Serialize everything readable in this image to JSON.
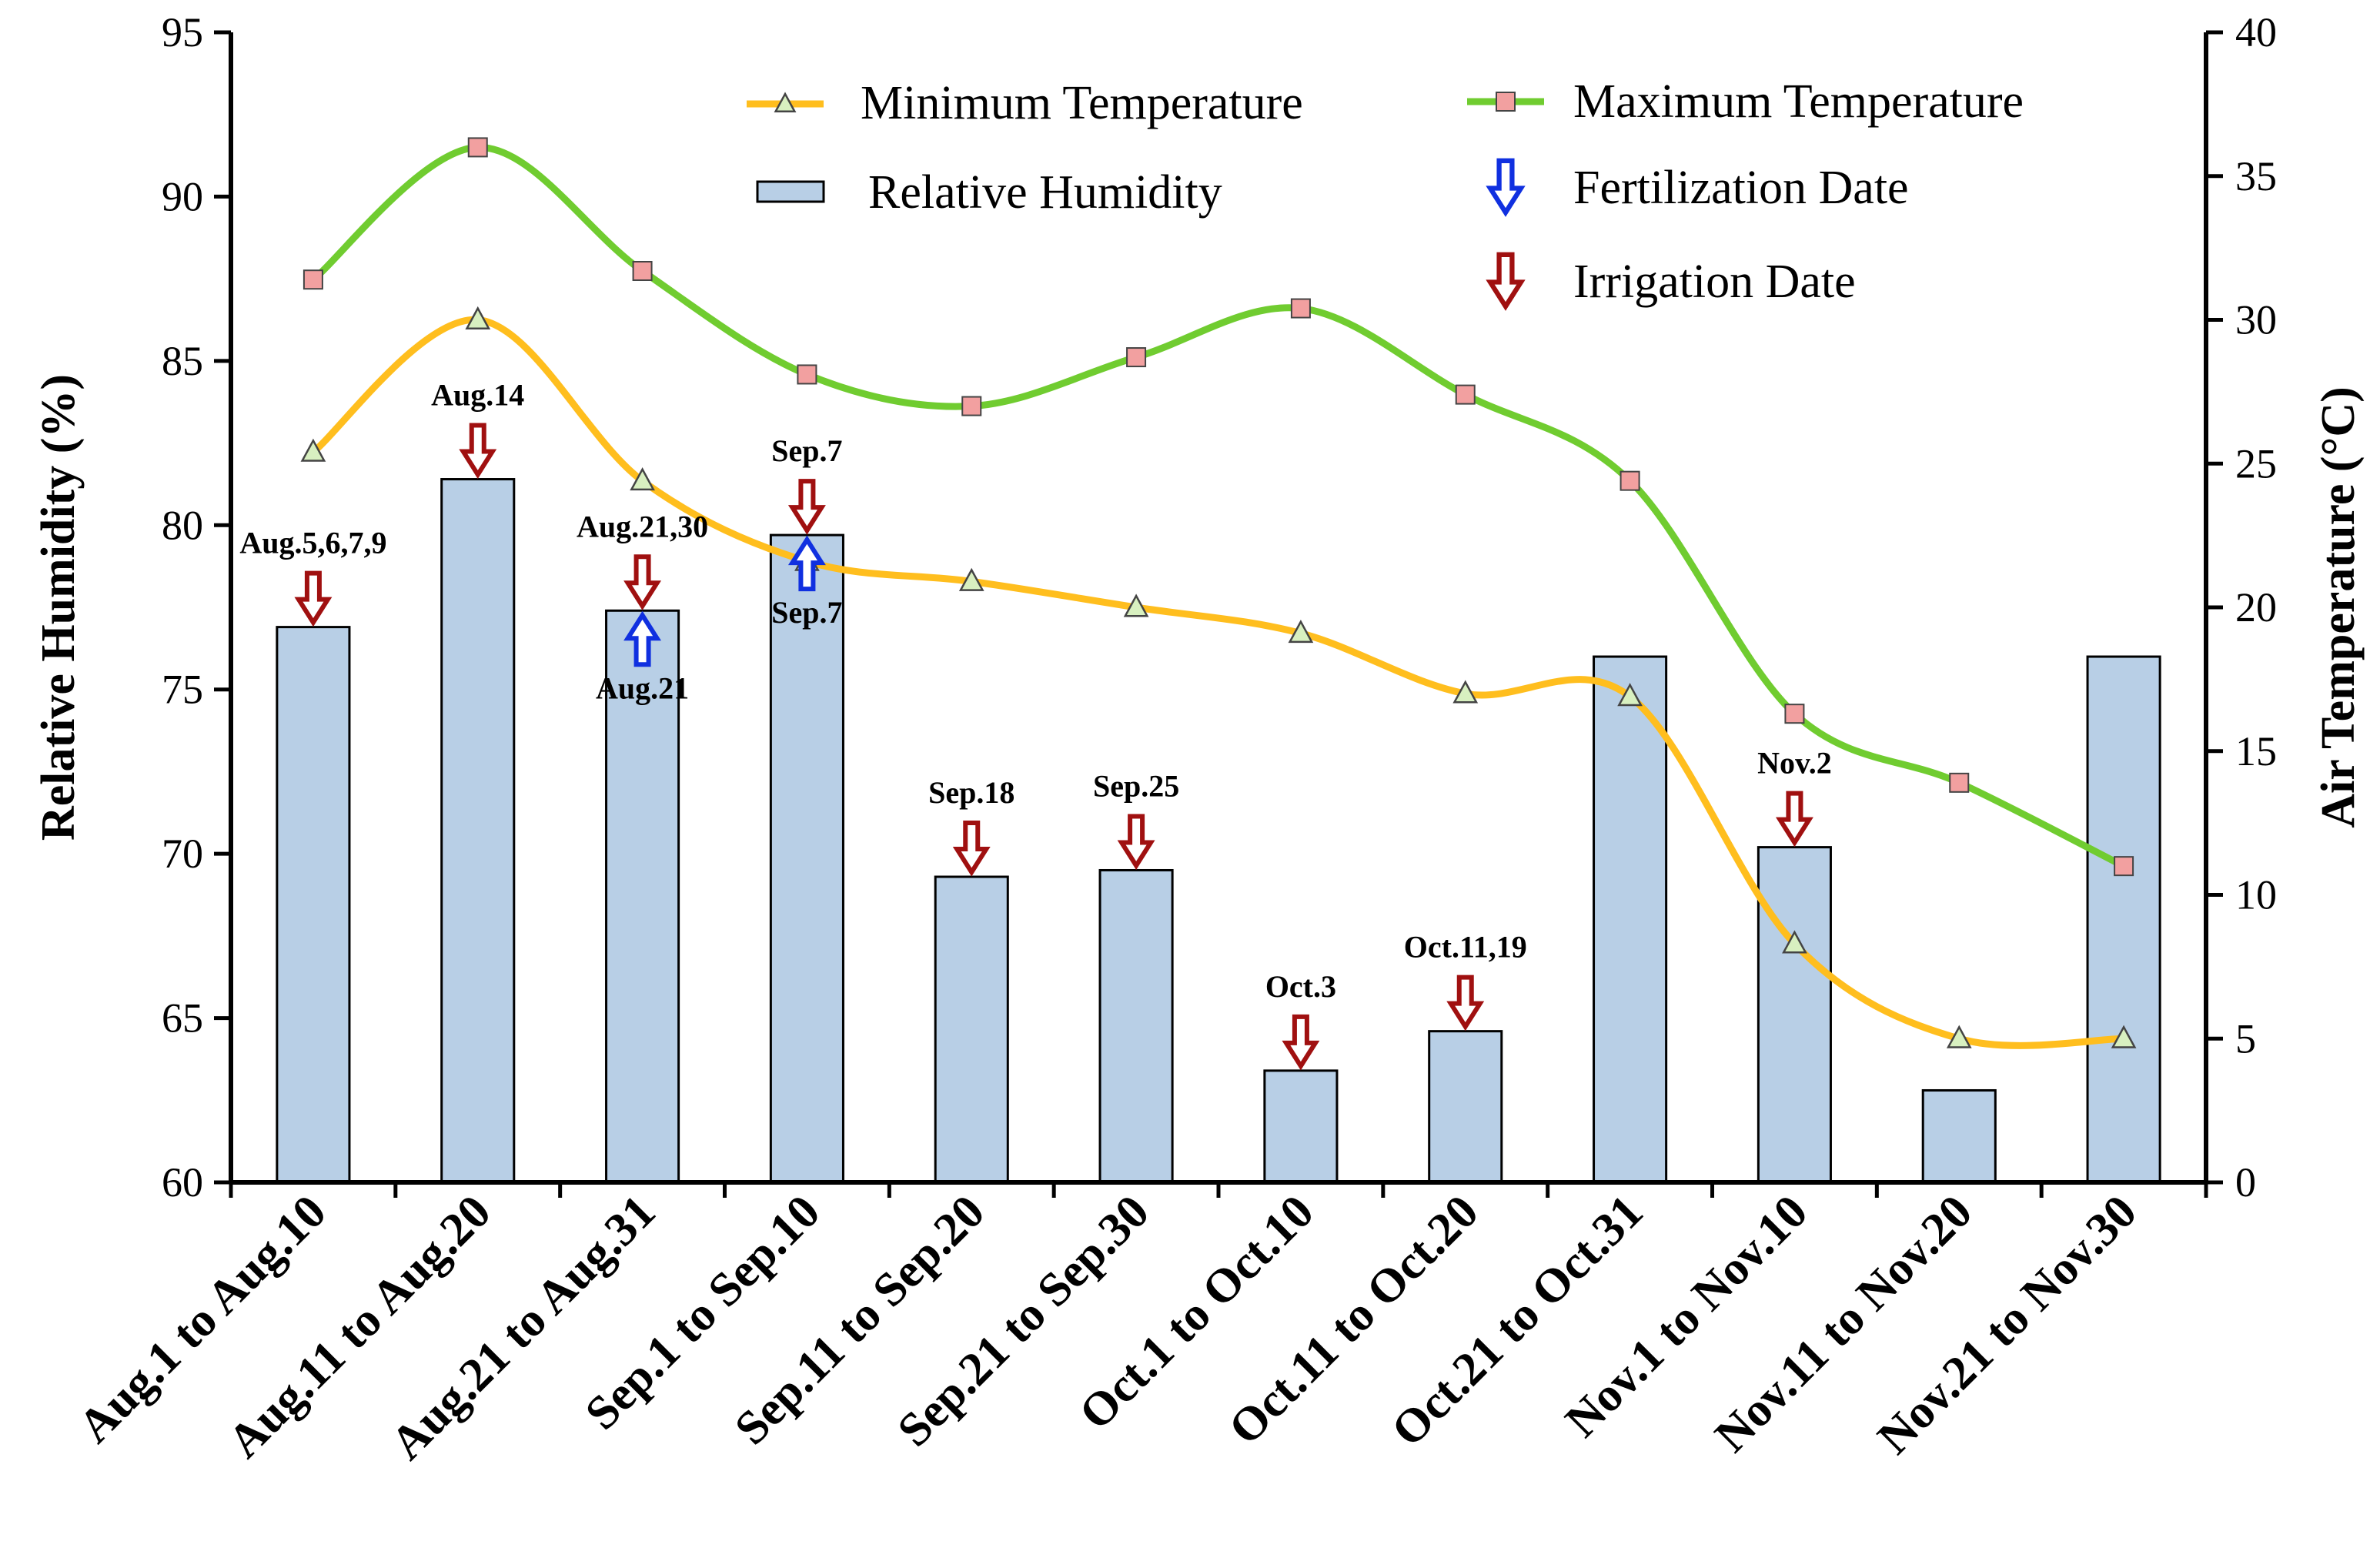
{
  "chart_data": {
    "type": "bar",
    "categories": [
      "Aug.1 to Aug.10",
      "Aug.11 to Aug.20",
      "Aug.21 to Aug.31",
      "Sep.1 to Sep.10",
      "Sep.11 to Sep.20",
      "Sep.21 to Sep.30",
      "Oct.1 to Oct.10",
      "Oct.11 to Oct.20",
      "Oct.21 to Oct.31",
      "Nov.1 to Nov.10",
      "Nov.11 to Nov.20",
      "Nov.21 to Nov.30"
    ],
    "ylabel": "Relative Humidity (%)",
    "ylim": [
      60,
      95
    ],
    "yticks": [
      "60",
      "65",
      "70",
      "75",
      "80",
      "85",
      "90",
      "95"
    ],
    "y2label": "Air Temperature (°C)",
    "y2lim": [
      0,
      40
    ],
    "y2ticks": [
      "0",
      "5",
      "10",
      "15",
      "20",
      "25",
      "30",
      "35",
      "40"
    ],
    "series": [
      {
        "name": "Relative Humidity",
        "type": "bar",
        "axis": "left",
        "color": "#b8cfe6",
        "values": [
          76.9,
          81.4,
          77.4,
          79.7,
          69.3,
          69.5,
          63.4,
          64.6,
          76.0,
          70.2,
          62.8,
          76.0
        ]
      },
      {
        "name": "Minimum Temperature",
        "type": "line",
        "axis": "right",
        "color": "#ffbe1e",
        "marker": "triangle",
        "marker_color": "#d8f0c0",
        "values": [
          25.4,
          30.0,
          24.4,
          21.6,
          20.9,
          20.0,
          19.1,
          17.0,
          16.9,
          8.3,
          5.0,
          5.0
        ]
      },
      {
        "name": "Maximum Temperature",
        "type": "line",
        "axis": "right",
        "color": "#70cc30",
        "marker": "square",
        "marker_color": "#f2a0a0",
        "values": [
          31.4,
          36.0,
          31.7,
          28.1,
          27.0,
          28.7,
          30.4,
          27.4,
          24.4,
          16.3,
          13.9,
          11.0
        ]
      }
    ],
    "legend": {
      "position": "top",
      "entries": [
        "Minimum Temperature",
        "Maximum Temperature",
        "Relative Humidity",
        "Fertilization Date",
        "Irrigation Date"
      ]
    },
    "arrow_colors": {
      "irrigation": "#a01010",
      "fertilization": "#1030e0"
    },
    "irrigation_dates": [
      {
        "category_index": 0,
        "label": "Aug.5,6,7,9"
      },
      {
        "category_index": 1,
        "label": "Aug.14"
      },
      {
        "category_index": 2,
        "label": "Aug.21,30"
      },
      {
        "category_index": 3,
        "label": "Sep.7"
      },
      {
        "category_index": 4,
        "label": "Sep.18"
      },
      {
        "category_index": 5,
        "label": "Sep.25"
      },
      {
        "category_index": 6,
        "label": "Oct.3"
      },
      {
        "category_index": 7,
        "label": "Oct.11,19"
      },
      {
        "category_index": 9,
        "label": "Nov.2"
      }
    ],
    "fertilization_dates": [
      {
        "category_index": 2,
        "label": "Aug.21"
      },
      {
        "category_index": 3,
        "label": "Sep.7"
      }
    ]
  }
}
